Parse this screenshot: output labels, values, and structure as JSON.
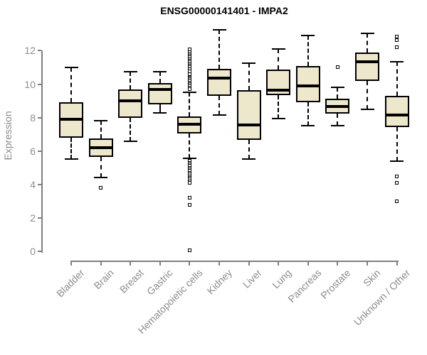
{
  "title": "ENSG00000141401 - IMPA2",
  "colors": {
    "box_fill": "#EDE7CC",
    "box_border": "#000000",
    "median_line": "#000000",
    "axis_line": "#7F7F7F",
    "tick_label": "#8C8C8C",
    "title_text": "#000000"
  },
  "chart_data": {
    "type": "boxplot",
    "title": "ENSG00000141401 - IMPA2",
    "xlabel": "",
    "ylabel": "Expression",
    "yticks": [
      0,
      2,
      4,
      6,
      8,
      10,
      12
    ],
    "ylim": [
      0,
      13.6
    ],
    "grid": "off",
    "categories": [
      "Bladder",
      "Brain",
      "Breast",
      "Gastric",
      "Hematopoietic cells",
      "Kidney",
      "Liver",
      "Lung",
      "Pancreas",
      "Prostate",
      "Skin",
      "Unknown / Other"
    ],
    "boxes": [
      {
        "label": "Bladder",
        "low": 5.5,
        "q1": 6.8,
        "median": 7.9,
        "q3": 8.9,
        "high": 11.0,
        "outliers": []
      },
      {
        "label": "Brain",
        "low": 4.4,
        "q1": 5.65,
        "median": 6.2,
        "q3": 6.75,
        "high": 7.8,
        "outliers": [
          3.8
        ]
      },
      {
        "label": "Breast",
        "low": 6.6,
        "q1": 8.0,
        "median": 9.0,
        "q3": 9.7,
        "high": 10.75,
        "outliers": []
      },
      {
        "label": "Gastric",
        "low": 8.3,
        "q1": 8.8,
        "median": 9.7,
        "q3": 10.05,
        "high": 10.75,
        "outliers": []
      },
      {
        "label": "Hematopoietic cells",
        "low": 5.55,
        "q1": 7.05,
        "median": 7.6,
        "q3": 8.05,
        "high": 9.5,
        "outliers": [
          12.1,
          11.9,
          11.8,
          11.7,
          11.6,
          11.5,
          11.4,
          11.3,
          11.2,
          11.1,
          11.0,
          10.9,
          10.75,
          10.6,
          10.4,
          10.3,
          10.2,
          10.1,
          10.0,
          9.9,
          9.8,
          9.7,
          5.4,
          5.3,
          5.2,
          5.1,
          5.0,
          4.9,
          4.8,
          4.7,
          4.6,
          4.5,
          4.4,
          4.3,
          4.2,
          4.1,
          3.2,
          2.8,
          0.05
        ]
      },
      {
        "label": "Kidney",
        "low": 8.15,
        "q1": 9.3,
        "median": 10.35,
        "q3": 10.9,
        "high": 13.25,
        "outliers": []
      },
      {
        "label": "Liver",
        "low": 5.5,
        "q1": 6.65,
        "median": 7.55,
        "q3": 9.65,
        "high": 11.25,
        "outliers": []
      },
      {
        "label": "Lung",
        "low": 7.95,
        "q1": 9.35,
        "median": 9.65,
        "q3": 10.85,
        "high": 12.1,
        "outliers": []
      },
      {
        "label": "Pancreas",
        "low": 7.5,
        "q1": 8.9,
        "median": 9.9,
        "q3": 11.1,
        "high": 12.9,
        "outliers": []
      },
      {
        "label": "Prostate",
        "low": 7.5,
        "q1": 8.25,
        "median": 8.65,
        "q3": 9.15,
        "high": 9.8,
        "outliers": [
          11.0
        ]
      },
      {
        "label": "Skin",
        "low": 8.5,
        "q1": 10.2,
        "median": 11.35,
        "q3": 11.9,
        "high": 13.05,
        "outliers": []
      },
      {
        "label": "Unknown / Other",
        "low": 5.4,
        "q1": 7.45,
        "median": 8.15,
        "q3": 9.3,
        "high": 11.35,
        "outliers": [
          12.85,
          12.65,
          12.2,
          4.5,
          4.1,
          3.0
        ]
      }
    ]
  }
}
